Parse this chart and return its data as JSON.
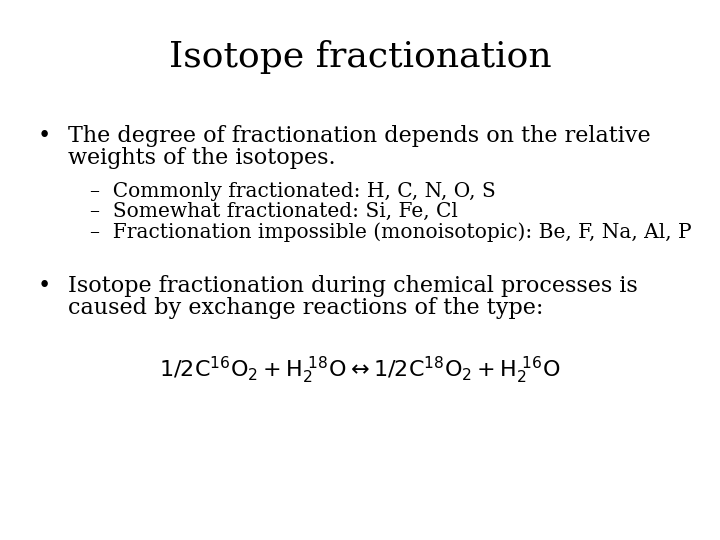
{
  "title": "Isotope fractionation",
  "title_fontsize": 26,
  "title_font": "serif",
  "bg_color": "#ffffff",
  "text_color": "#000000",
  "bullet1_line1": "The degree of fractionation depends on the relative",
  "bullet1_line2": "weights of the isotopes.",
  "sub1": "–  Commonly fractionated: H, C, N, O, S",
  "sub2": "–  Somewhat fractionated: Si, Fe, Cl",
  "sub3": "–  Fractionation impossible (monoisotopic): Be, F, Na, Al, P",
  "bullet2_line1": "Isotope fractionation during chemical processes is",
  "bullet2_line2": "caused by exchange reactions of the type:",
  "body_fontsize": 16,
  "sub_fontsize": 14.5,
  "bullet_fontsize": 16,
  "eq_fontsize": 16
}
